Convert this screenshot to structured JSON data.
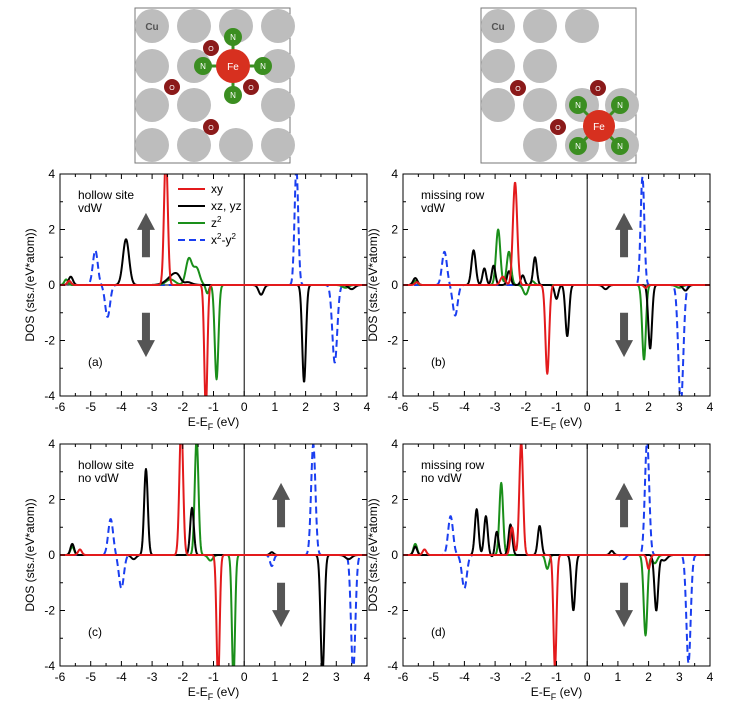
{
  "figure": {
    "insets": [
      {
        "name": "hollow-site-geometry",
        "labels": {
          "substrate": "Cu",
          "metal": "Fe",
          "nitrogen": "N",
          "oxygen": "O"
        }
      },
      {
        "name": "missing-row-geometry",
        "labels": {
          "substrate": "Cu",
          "metal": "Fe",
          "nitrogen": "N",
          "oxygen": "O"
        }
      }
    ]
  },
  "colors": {
    "xy": "#e31a1c",
    "xz_yz": "#000000",
    "z2": "#1a8f1a",
    "x2_y2": "#1a3ef0",
    "cu": "#bdbdbd",
    "fe": "#d7301f",
    "n": "#3b8e21",
    "o": "#8b1a1a",
    "arrow": "#555555"
  },
  "legend": {
    "entries": [
      {
        "key": "xy",
        "label": "xy",
        "style": "solid"
      },
      {
        "key": "xz_yz",
        "label": "xz, yz",
        "style": "solid"
      },
      {
        "key": "z2",
        "label": "z",
        "sup": "2",
        "style": "solid"
      },
      {
        "key": "x2_y2",
        "label": "x",
        "sup": "2",
        "mid": "-y",
        "sup2": "2",
        "style": "dashed"
      }
    ]
  },
  "chart_data": [
    {
      "panel": "(a)",
      "type": "line",
      "title": [
        "hollow site",
        "vdW"
      ],
      "xlabel": "E-E_F (eV)",
      "ylabel": "DOS (sts./(eV*atom))",
      "xlim": [
        -6,
        4
      ],
      "ylim": [
        -4,
        4
      ],
      "xticks": [
        -6,
        -5,
        -4,
        -3,
        -2,
        -1,
        0,
        1,
        2,
        3,
        4
      ],
      "yticks": [
        -4,
        -2,
        0,
        2,
        4
      ],
      "spin_arrows": {
        "x": -3.2
      },
      "series": [
        {
          "name": "xy",
          "peaks": [
            [
              -5.7,
              0.15,
              0.06
            ],
            [
              -2.55,
              4.8,
              0.06
            ],
            [
              -1.25,
              -4.5,
              0.05
            ]
          ]
        },
        {
          "name": "xz, yz",
          "peaks": [
            [
              -5.65,
              0.3,
              0.07
            ],
            [
              -3.85,
              1.65,
              0.1
            ],
            [
              -2.2,
              0.45,
              0.25
            ],
            [
              -2.0,
              -0.2,
              0.1
            ],
            [
              0.55,
              -0.35,
              0.08
            ],
            [
              1.95,
              -3.5,
              0.06
            ],
            [
              3.5,
              -0.15,
              0.1
            ]
          ]
        },
        {
          "name": "z2",
          "peaks": [
            [
              -5.8,
              0.2,
              0.06
            ],
            [
              -2.4,
              0.2,
              0.15
            ],
            [
              -1.8,
              0.95,
              0.1
            ],
            [
              -1.55,
              0.6,
              0.1
            ],
            [
              -1.2,
              -0.3,
              0.05
            ],
            [
              -0.9,
              -3.4,
              0.06
            ],
            [
              3.3,
              -0.1,
              0.1
            ]
          ]
        },
        {
          "name": "x2-y2",
          "peaks": [
            [
              -4.85,
              1.25,
              0.08
            ],
            [
              -4.45,
              -1.15,
              0.08
            ],
            [
              -5.7,
              0.1,
              0.06
            ],
            [
              1.7,
              4.2,
              0.06
            ],
            [
              2.95,
              -2.8,
              0.08
            ]
          ]
        }
      ]
    },
    {
      "panel": "(b)",
      "type": "line",
      "title": [
        "missing row",
        "vdW"
      ],
      "xlabel": "E-E_F (eV)",
      "ylabel": "DOS (sts./(eV*atom))",
      "xlim": [
        -6,
        4
      ],
      "ylim": [
        -4,
        4
      ],
      "xticks": [
        -6,
        -5,
        -4,
        -3,
        -2,
        -1,
        0,
        1,
        2,
        3,
        4
      ],
      "yticks": [
        -4,
        -2,
        0,
        2,
        4
      ],
      "spin_arrows": {
        "x": 1.2
      },
      "series": [
        {
          "name": "xy",
          "peaks": [
            [
              -5.55,
              0.1,
              0.06
            ],
            [
              -2.35,
              3.7,
              0.07
            ],
            [
              -2.75,
              0.3,
              0.08
            ],
            [
              -1.3,
              -3.2,
              0.06
            ],
            [
              1.9,
              -0.1,
              0.05
            ]
          ]
        },
        {
          "name": "xz, yz",
          "peaks": [
            [
              -5.6,
              0.25,
              0.07
            ],
            [
              -3.7,
              1.25,
              0.07
            ],
            [
              -3.35,
              0.6,
              0.06
            ],
            [
              -3.05,
              0.7,
              0.06
            ],
            [
              -2.55,
              0.5,
              0.06
            ],
            [
              -2.1,
              0.35,
              0.06
            ],
            [
              -1.7,
              1.0,
              0.06
            ],
            [
              -0.65,
              -1.85,
              0.06
            ],
            [
              -1.0,
              -0.5,
              0.06
            ],
            [
              0.6,
              -0.15,
              0.08
            ],
            [
              2.05,
              -2.3,
              0.06
            ],
            [
              3.2,
              -0.2,
              0.08
            ]
          ]
        },
        {
          "name": "z2",
          "peaks": [
            [
              -5.6,
              0.15,
              0.06
            ],
            [
              -2.9,
              2.0,
              0.07
            ],
            [
              -2.55,
              1.2,
              0.07
            ],
            [
              -2.0,
              -0.35,
              0.08
            ],
            [
              -1.8,
              0.15,
              0.08
            ],
            [
              1.85,
              -2.7,
              0.06
            ],
            [
              3.0,
              -0.1,
              0.1
            ]
          ]
        },
        {
          "name": "x2-y2",
          "peaks": [
            [
              -4.65,
              1.2,
              0.08
            ],
            [
              -4.3,
              -1.1,
              0.08
            ],
            [
              1.8,
              3.9,
              0.06
            ],
            [
              3.05,
              -4.3,
              0.08
            ]
          ]
        }
      ]
    },
    {
      "panel": "(c)",
      "type": "line",
      "title": [
        "hollow site",
        "no vdW"
      ],
      "xlabel": "E-E_F (eV)",
      "ylabel": "DOS (sts./(eV*atom))",
      "xlim": [
        -6,
        4
      ],
      "ylim": [
        -4,
        4
      ],
      "xticks": [
        -6,
        -5,
        -4,
        -3,
        -2,
        -1,
        0,
        1,
        2,
        3,
        4
      ],
      "yticks": [
        -4,
        -2,
        0,
        2,
        4
      ],
      "spin_arrows": {
        "x": 1.2
      },
      "series": [
        {
          "name": "xy",
          "peaks": [
            [
              -5.35,
              0.2,
              0.06
            ],
            [
              -2.05,
              4.8,
              0.06
            ],
            [
              -0.85,
              -4.6,
              0.05
            ]
          ]
        },
        {
          "name": "xz, yz",
          "peaks": [
            [
              -5.6,
              0.4,
              0.06
            ],
            [
              -3.2,
              3.1,
              0.06
            ],
            [
              -1.7,
              1.7,
              0.06
            ],
            [
              -3.6,
              -0.15,
              0.08
            ],
            [
              0.9,
              0.1,
              0.06
            ],
            [
              2.55,
              -4.3,
              0.06
            ],
            [
              3.4,
              -0.15,
              0.1
            ]
          ]
        },
        {
          "name": "z2",
          "peaks": [
            [
              -5.6,
              0.3,
              0.06
            ],
            [
              -1.55,
              4.2,
              0.06
            ],
            [
              -0.35,
              -4.5,
              0.05
            ],
            [
              -1.1,
              -0.2,
              0.08
            ]
          ]
        },
        {
          "name": "x2-y2",
          "peaks": [
            [
              -4.35,
              1.3,
              0.08
            ],
            [
              -4.0,
              -1.2,
              0.08
            ],
            [
              0.9,
              -0.4,
              0.06
            ],
            [
              2.25,
              4.0,
              0.07
            ],
            [
              3.55,
              -4.2,
              0.07
            ]
          ]
        }
      ]
    },
    {
      "panel": "(d)",
      "type": "line",
      "title": [
        "missing row",
        "no vdW"
      ],
      "xlabel": "E-E_F (eV)",
      "ylabel": "DOS (sts./(eV*atom))",
      "xlim": [
        -6,
        4
      ],
      "ylim": [
        -4,
        4
      ],
      "xticks": [
        -6,
        -5,
        -4,
        -3,
        -2,
        -1,
        0,
        1,
        2,
        3,
        4
      ],
      "yticks": [
        -4,
        -2,
        0,
        2,
        4
      ],
      "spin_arrows": {
        "x": 1.2
      },
      "series": [
        {
          "name": "xy",
          "peaks": [
            [
              -5.3,
              0.2,
              0.06
            ],
            [
              -2.15,
              4.1,
              0.06
            ],
            [
              -2.45,
              1.0,
              0.06
            ],
            [
              -1.05,
              -4.1,
              0.05
            ],
            [
              2.0,
              -0.5,
              0.05
            ]
          ]
        },
        {
          "name": "xz, yz",
          "peaks": [
            [
              -5.6,
              0.3,
              0.06
            ],
            [
              -3.6,
              1.65,
              0.06
            ],
            [
              -3.3,
              1.4,
              0.06
            ],
            [
              -2.95,
              1.0,
              0.06
            ],
            [
              -2.5,
              1.1,
              0.06
            ],
            [
              -1.55,
              1.05,
              0.06
            ],
            [
              -3.0,
              -0.2,
              0.08
            ],
            [
              -0.45,
              -2.0,
              0.06
            ],
            [
              0.8,
              0.15,
              0.06
            ],
            [
              2.25,
              -2.0,
              0.06
            ],
            [
              2.5,
              -0.2,
              0.1
            ]
          ]
        },
        {
          "name": "z2",
          "peaks": [
            [
              -5.6,
              0.4,
              0.06
            ],
            [
              -2.8,
              2.6,
              0.06
            ],
            [
              -1.3,
              -0.5,
              0.06
            ],
            [
              1.9,
              -2.9,
              0.06
            ],
            [
              2.2,
              -0.3,
              0.08
            ]
          ]
        },
        {
          "name": "x2-y2",
          "peaks": [
            [
              -4.45,
              1.4,
              0.08
            ],
            [
              -4.0,
              -1.2,
              0.08
            ],
            [
              1.2,
              -0.15,
              0.06
            ],
            [
              1.95,
              4.1,
              0.07
            ],
            [
              3.3,
              -3.9,
              0.07
            ]
          ]
        }
      ]
    }
  ]
}
